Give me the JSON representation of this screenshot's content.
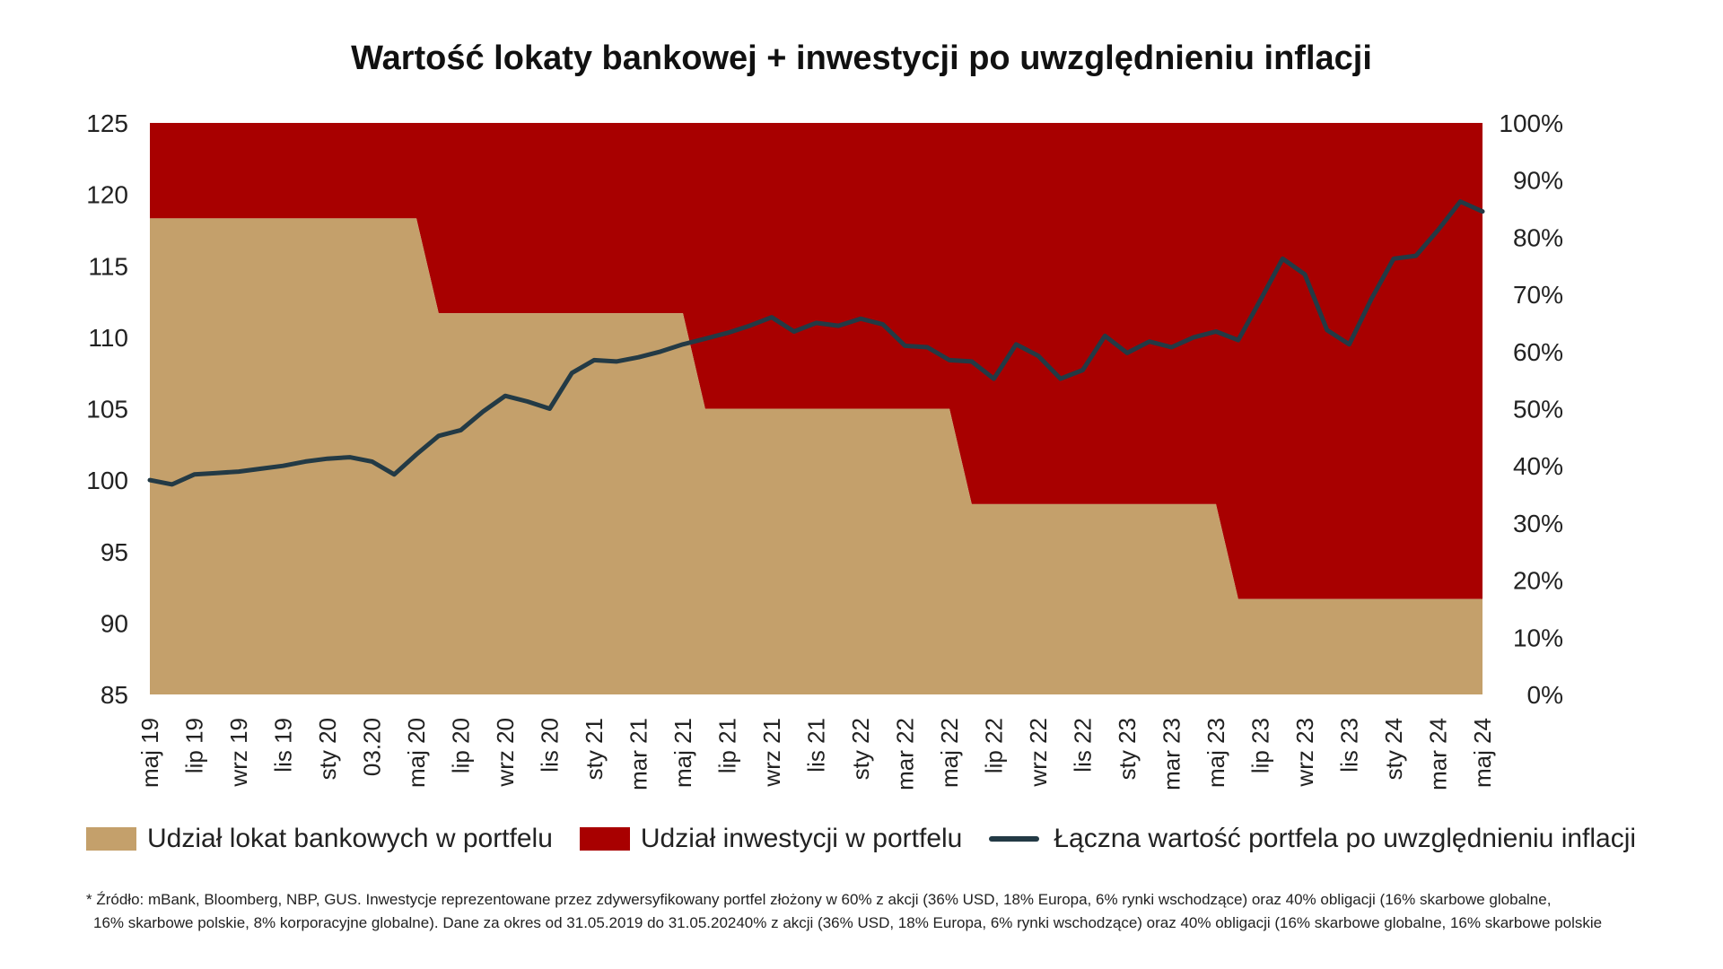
{
  "chart_data": {
    "type": "area",
    "title": "Wartość lokaty bankowej + inwestycji po uwzględnieniu inflacji",
    "left_axis": {
      "ylim": [
        85,
        125
      ],
      "ticks": [
        85,
        90,
        95,
        100,
        105,
        110,
        115,
        120,
        125
      ]
    },
    "right_axis": {
      "ylim": [
        0,
        100
      ],
      "unit": "%",
      "ticks": [
        "0%",
        "10%",
        "20%",
        "30%",
        "40%",
        "50%",
        "60%",
        "70%",
        "80%",
        "90%",
        "100%"
      ]
    },
    "x_tick_labels": [
      "maj 19",
      "lip 19",
      "wrz 19",
      "lis 19",
      "sty 20",
      "03.20",
      "maj 20",
      "lip 20",
      "wrz 20",
      "lis 20",
      "sty 21",
      "mar 21",
      "maj 21",
      "lip 21",
      "wrz 21",
      "lis 21",
      "sty 22",
      "mar 22",
      "maj 22",
      "lip 22",
      "wrz 22",
      "lis 22",
      "sty 23",
      "mar 23",
      "maj 23",
      "lip 23",
      "wrz 23",
      "lis 23",
      "sty 24",
      "mar 24",
      "maj 24"
    ],
    "grid": false,
    "legend_position": "bottom",
    "series": [
      {
        "name": "Udział lokat bankowych w portfelu",
        "type": "area",
        "axis": "right",
        "color": "#c4a06b",
        "values": [
          83.3,
          83.3,
          83.3,
          83.3,
          83.3,
          83.3,
          83.3,
          83.3,
          83.3,
          83.3,
          83.3,
          83.3,
          83.3,
          66.7,
          66.7,
          66.7,
          66.7,
          66.7,
          66.7,
          66.7,
          66.7,
          66.7,
          66.7,
          66.7,
          66.7,
          50,
          50,
          50,
          50,
          50,
          50,
          50,
          50,
          50,
          50,
          50,
          50,
          33.3,
          33.3,
          33.3,
          33.3,
          33.3,
          33.3,
          33.3,
          33.3,
          33.3,
          33.3,
          33.3,
          33.3,
          16.7,
          16.7,
          16.7,
          16.7,
          16.7,
          16.7,
          16.7,
          16.7,
          16.7,
          16.7,
          16.7,
          16.7
        ]
      },
      {
        "name": "Udział inwestycji w portfelu",
        "type": "area",
        "axis": "right",
        "color": "#a80000",
        "values": [
          16.7,
          16.7,
          16.7,
          16.7,
          16.7,
          16.7,
          16.7,
          16.7,
          16.7,
          16.7,
          16.7,
          16.7,
          16.7,
          33.3,
          33.3,
          33.3,
          33.3,
          33.3,
          33.3,
          33.3,
          33.3,
          33.3,
          33.3,
          33.3,
          33.3,
          50,
          50,
          50,
          50,
          50,
          50,
          50,
          50,
          50,
          50,
          50,
          50,
          66.7,
          66.7,
          66.7,
          66.7,
          66.7,
          66.7,
          66.7,
          66.7,
          66.7,
          66.7,
          66.7,
          66.7,
          83.3,
          83.3,
          83.3,
          83.3,
          83.3,
          83.3,
          83.3,
          83.3,
          83.3,
          83.3,
          83.3,
          83.3
        ]
      },
      {
        "name": "Łączna wartość portfela po uwzględnieniu inflacji",
        "type": "line",
        "axis": "left",
        "color": "#233a45",
        "values": [
          100.0,
          99.7,
          100.4,
          100.5,
          100.6,
          100.8,
          101.0,
          101.3,
          101.5,
          101.6,
          101.3,
          100.4,
          101.8,
          103.1,
          103.5,
          104.8,
          105.9,
          105.5,
          105.0,
          107.5,
          108.4,
          108.3,
          108.6,
          109.0,
          109.5,
          109.9,
          110.3,
          110.8,
          111.4,
          110.4,
          111.0,
          110.8,
          111.3,
          110.9,
          109.4,
          109.3,
          108.4,
          108.3,
          107.1,
          109.5,
          108.7,
          107.1,
          107.7,
          110.1,
          108.9,
          109.7,
          109.3,
          110.0,
          110.4,
          109.8,
          112.6,
          115.5,
          114.4,
          110.5,
          109.5,
          112.7,
          115.5,
          115.7,
          117.5,
          119.5,
          118.8
        ]
      }
    ]
  },
  "legend": [
    {
      "label": "Udział lokat bankowych w portfelu",
      "color": "#c4a06b",
      "kind": "area"
    },
    {
      "label": "Udział inwestycji w portfelu",
      "color": "#a80000",
      "kind": "area"
    },
    {
      "label": "Łączna wartość portfela po uwzględnieniu inflacji",
      "color": "#233a45",
      "kind": "line"
    }
  ],
  "footnote": {
    "line1": "* Źródło: mBank, Bloomberg, NBP, GUS. Inwestycje reprezentowane przez zdywersyfikowany portfel złożony w 60% z akcji (36% USD, 18% Europa, 6% rynki wschodzące) oraz 40% obligacji (16% skarbowe globalne,",
    "line2": "16% skarbowe polskie, 8% korporacyjne globalne). Dane za okres od 31.05.2019 do 31.05.20240% z akcji (36% USD, 18% Europa, 6% rynki wschodzące) oraz 40% obligacji (16% skarbowe globalne, 16% skarbowe polskie"
  }
}
